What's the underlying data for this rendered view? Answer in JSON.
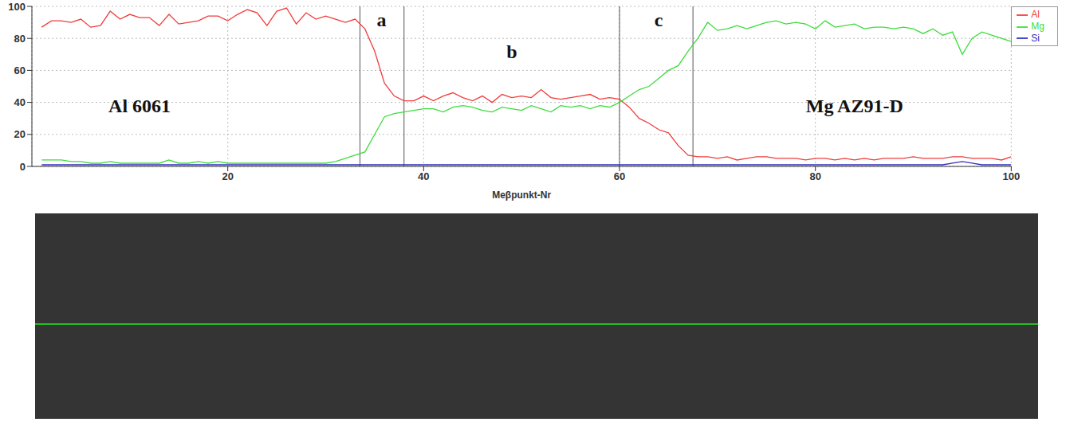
{
  "chart_data": {
    "type": "line",
    "x_label": "Meβpunkt-Nr",
    "xlim": [
      0,
      100
    ],
    "xticks": [
      20,
      40,
      60,
      80,
      100
    ],
    "ylim": [
      0,
      100
    ],
    "yticks": [
      0,
      20,
      40,
      60,
      80,
      100
    ],
    "grid": true,
    "legend": "right",
    "x": [
      1,
      2,
      3,
      4,
      5,
      6,
      7,
      8,
      9,
      10,
      11,
      12,
      13,
      14,
      15,
      16,
      17,
      18,
      19,
      20,
      21,
      22,
      23,
      24,
      25,
      26,
      27,
      28,
      29,
      30,
      31,
      32,
      33,
      34,
      35,
      36,
      37,
      38,
      39,
      40,
      41,
      42,
      43,
      44,
      45,
      46,
      47,
      48,
      49,
      50,
      51,
      52,
      53,
      54,
      55,
      56,
      57,
      58,
      59,
      60,
      61,
      62,
      63,
      64,
      65,
      66,
      67,
      68,
      69,
      70,
      71,
      72,
      73,
      74,
      75,
      76,
      77,
      78,
      79,
      80,
      81,
      82,
      83,
      84,
      85,
      86,
      87,
      88,
      89,
      90,
      91,
      92,
      93,
      94,
      95,
      96,
      97,
      98,
      99,
      100
    ],
    "series": [
      {
        "name": "Al",
        "color": "#f03c3c",
        "values": [
          87,
          91,
          91,
          90,
          92,
          87,
          88,
          97,
          92,
          95,
          93,
          93,
          88,
          95,
          89,
          90,
          91,
          94,
          94,
          91,
          95,
          98,
          96,
          88,
          97,
          99,
          89,
          96,
          92,
          94,
          92,
          90,
          92,
          86,
          72,
          52,
          44,
          41,
          41,
          44,
          41,
          44,
          46,
          43,
          41,
          44,
          40,
          45,
          43,
          44,
          43,
          48,
          43,
          42,
          43,
          44,
          45,
          42,
          43,
          42,
          37,
          30,
          27,
          23,
          21,
          13,
          7,
          6,
          6,
          5,
          6,
          4,
          5,
          6,
          6,
          5,
          5,
          5,
          4,
          5,
          5,
          4,
          5,
          4,
          5,
          4,
          5,
          5,
          5,
          6,
          5,
          5,
          5,
          6,
          6,
          5,
          5,
          5,
          4,
          6
        ]
      },
      {
        "name": "Mg",
        "color": "#3ddc3d",
        "values": [
          4,
          4,
          4,
          3,
          3,
          2,
          2,
          3,
          2,
          2,
          2,
          2,
          2,
          4,
          2,
          2,
          3,
          2,
          3,
          2,
          2,
          2,
          2,
          2,
          2,
          2,
          2,
          2,
          2,
          2,
          3,
          5,
          7,
          9,
          20,
          31,
          33,
          34,
          35,
          36,
          36,
          34,
          37,
          38,
          37,
          35,
          34,
          37,
          36,
          35,
          38,
          36,
          34,
          38,
          37,
          38,
          36,
          38,
          37,
          40,
          44,
          48,
          50,
          55,
          60,
          63,
          72,
          80,
          90,
          85,
          86,
          88,
          86,
          88,
          90,
          91,
          89,
          90,
          89,
          86,
          91,
          87,
          88,
          89,
          86,
          87,
          87,
          86,
          87,
          86,
          83,
          86,
          82,
          84,
          70,
          80,
          84,
          82,
          80,
          78
        ]
      },
      {
        "name": "Si",
        "color": "#3030c0",
        "values": [
          1,
          1,
          1,
          1,
          1,
          1,
          1,
          1,
          1,
          1,
          1,
          1,
          1,
          1,
          1,
          1,
          1,
          1,
          1,
          1,
          1,
          1,
          1,
          1,
          1,
          1,
          1,
          1,
          1,
          1,
          1,
          1,
          1,
          1,
          1,
          1,
          1,
          1,
          1,
          1,
          1,
          1,
          1,
          1,
          1,
          1,
          1,
          1,
          1,
          1,
          1,
          1,
          1,
          1,
          1,
          1,
          1,
          1,
          1,
          1,
          1,
          1,
          1,
          1,
          1,
          1,
          1,
          1,
          1,
          1,
          1,
          1,
          1,
          1,
          1,
          1,
          1,
          1,
          1,
          1,
          1,
          1,
          1,
          1,
          1,
          1,
          1,
          1,
          1,
          1,
          1,
          1,
          1,
          2,
          3,
          2,
          1,
          1,
          1,
          1
        ]
      }
    ],
    "boundaries": [
      33.5,
      38,
      60,
      67.5
    ],
    "annotations": [
      {
        "text": "a",
        "x": 35.7,
        "y": 92
      },
      {
        "text": "b",
        "x": 49,
        "y": 72
      },
      {
        "text": "c",
        "x": 64,
        "y": 92
      },
      {
        "text": "Al 6061",
        "x": 11,
        "y": 38
      },
      {
        "text": "Mg AZ91-D",
        "x": 84,
        "y": 38
      }
    ]
  }
}
